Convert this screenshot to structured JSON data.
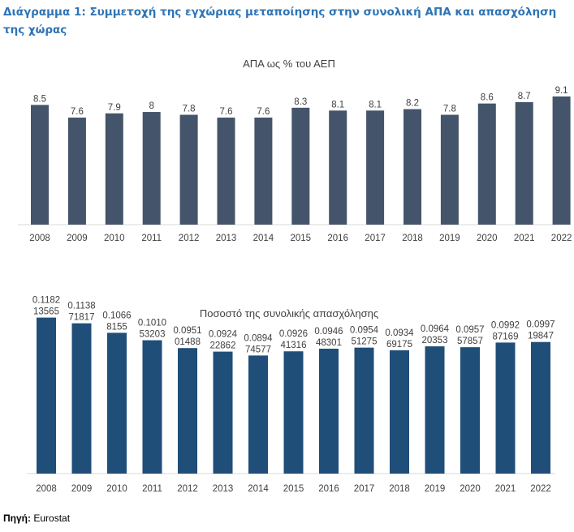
{
  "page_title": "Διάγραμμα 1: Συμμετοχή της εγχώριας μεταποίησης στην συνολική ΑΠΑ και απασχόληση της χώρας",
  "source": {
    "label": "Πηγή:",
    "value": "Eurostat"
  },
  "colors": {
    "title": "#2E74B5",
    "bar1": "#44546A",
    "bar2": "#1F4E79",
    "text": "#404040",
    "axis": "#D9D9D9"
  },
  "chart_data": [
    {
      "type": "bar",
      "title": "ΑΠΑ ως % του ΑΕΠ",
      "categories": [
        "2008",
        "2009",
        "2010",
        "2011",
        "2012",
        "2013",
        "2014",
        "2015",
        "2016",
        "2017",
        "2018",
        "2019",
        "2020",
        "2021",
        "2022"
      ],
      "values": [
        8.5,
        7.6,
        7.9,
        8,
        7.8,
        7.6,
        7.6,
        8.3,
        8.1,
        8.1,
        8.2,
        7.8,
        8.6,
        8.7,
        9.1
      ],
      "labels": [
        [
          "8.5"
        ],
        [
          "7.6"
        ],
        [
          "7.9"
        ],
        [
          "8"
        ],
        [
          "7.8"
        ],
        [
          "7.6"
        ],
        [
          "7.6"
        ],
        [
          "8.3"
        ],
        [
          "8.1"
        ],
        [
          "8.1"
        ],
        [
          "8.2"
        ],
        [
          "7.8"
        ],
        [
          "8.6"
        ],
        [
          "8.7"
        ],
        [
          "9.1"
        ]
      ],
      "ylim": [
        0,
        9.5
      ],
      "xlabel": "",
      "ylabel": ""
    },
    {
      "type": "bar",
      "title": "Ποσοστό της συνολικής απασχόλησης",
      "categories": [
        "2008",
        "2009",
        "2010",
        "2011",
        "2012",
        "2013",
        "2014",
        "2015",
        "2016",
        "2017",
        "2018",
        "2019",
        "2020",
        "2021",
        "2022"
      ],
      "values": [
        0.118213565,
        0.113871817,
        0.10668155,
        0.101053203,
        0.095101488,
        0.092422862,
        0.089474577,
        0.092641316,
        0.094648301,
        0.095451275,
        0.093469175,
        0.096420353,
        0.095757857,
        0.099287169,
        0.099719847
      ],
      "labels": [
        [
          "0.1182",
          "13565"
        ],
        [
          "0.1138",
          "71817"
        ],
        [
          "0.1066",
          "8155"
        ],
        [
          "0.1010",
          "53203"
        ],
        [
          "0.0951",
          "01488"
        ],
        [
          "0.0924",
          "22862"
        ],
        [
          "0.0894",
          "74577"
        ],
        [
          "0.0926",
          "41316"
        ],
        [
          "0.0946",
          "48301"
        ],
        [
          "0.0954",
          "51275"
        ],
        [
          "0.0934",
          "69175"
        ],
        [
          "0.0964",
          "20353"
        ],
        [
          "0.0957",
          "57857"
        ],
        [
          "0.0992",
          "87169"
        ],
        [
          "0.0997",
          "19847"
        ]
      ],
      "ylim": [
        0,
        0.1235
      ],
      "xlabel": "",
      "ylabel": ""
    }
  ]
}
